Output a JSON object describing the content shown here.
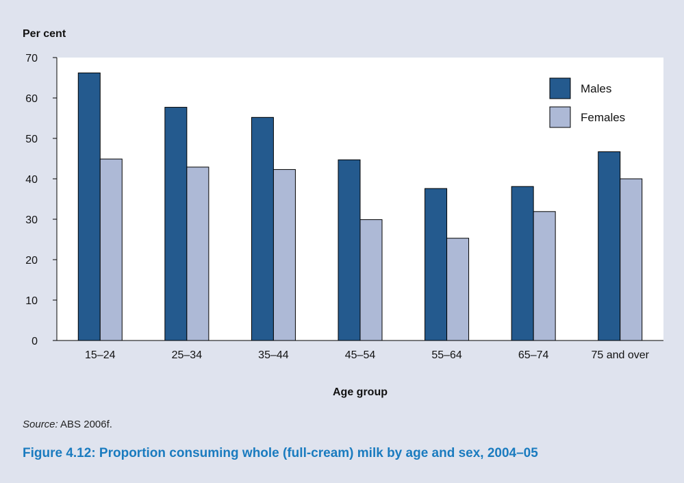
{
  "chart_data": {
    "type": "bar",
    "ylabel": "Per cent",
    "xlabel": "Age group",
    "ylim": [
      0,
      70
    ],
    "yticks": [
      0,
      10,
      20,
      30,
      40,
      50,
      60,
      70
    ],
    "categories": [
      "15–24",
      "25–34",
      "35–44",
      "45–54",
      "55–64",
      "65–74",
      "75 and over"
    ],
    "series": [
      {
        "name": "Males",
        "color": "#245a8e",
        "values": [
          66.2,
          57.7,
          55.2,
          44.7,
          37.6,
          38.1,
          46.7
        ]
      },
      {
        "name": "Females",
        "color": "#adb9d6",
        "values": [
          44.9,
          42.9,
          42.3,
          29.9,
          25.3,
          31.9,
          40.0
        ]
      }
    ],
    "legend_position": "top-right",
    "grid": false
  },
  "source": {
    "label": "Source:",
    "text": "ABS 2006f."
  },
  "caption": "Figure 4.12: Proportion consuming whole (full-cream) milk by age and sex, 2004–05"
}
